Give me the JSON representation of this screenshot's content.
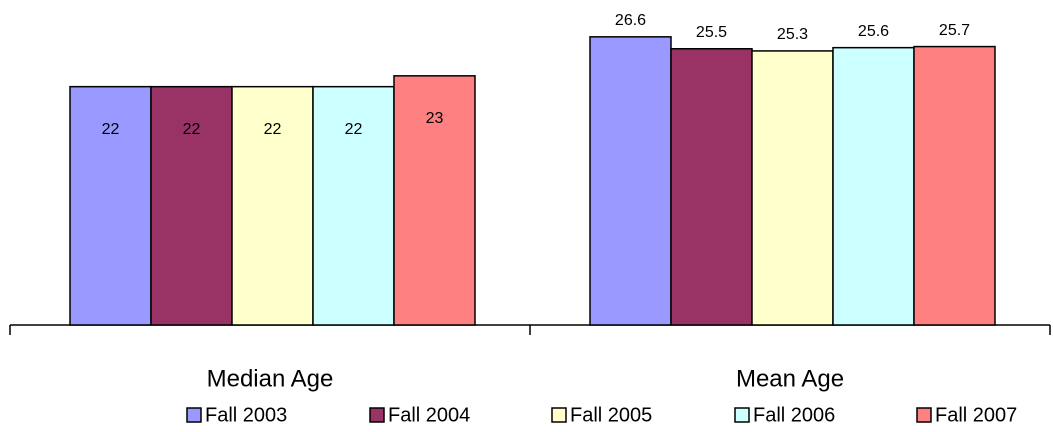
{
  "chart_data": {
    "type": "bar",
    "categories": [
      "Median Age",
      "Mean Age"
    ],
    "series": [
      {
        "name": "Fall 2003",
        "color": "#9999ff",
        "values": [
          22,
          26.6
        ]
      },
      {
        "name": "Fall 2004",
        "color": "#993366",
        "values": [
          22,
          25.5
        ]
      },
      {
        "name": "Fall 2005",
        "color": "#ffffcc",
        "values": [
          22,
          25.3
        ]
      },
      {
        "name": "Fall 2006",
        "color": "#ccffff",
        "values": [
          22,
          25.6
        ]
      },
      {
        "name": "Fall 2007",
        "color": "#ff8080",
        "values": [
          23,
          25.7
        ]
      }
    ],
    "ylim": [
      0,
      30
    ],
    "legend": "bottom"
  }
}
